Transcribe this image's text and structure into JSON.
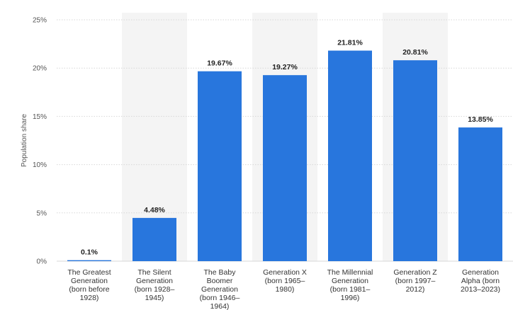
{
  "chart_data": {
    "type": "bar",
    "title": "",
    "xlabel": "",
    "ylabel": "Population share",
    "ylim": [
      0,
      25
    ],
    "yticks": [
      0,
      5,
      10,
      15,
      20,
      25
    ],
    "ytick_labels": [
      "0%",
      "5%",
      "10%",
      "15%",
      "20%",
      "25%"
    ],
    "grid": true,
    "categories": [
      [
        "The Greatest",
        "Generation",
        "(born before",
        "1928)"
      ],
      [
        "The Silent",
        "Generation",
        "(born 1928–",
        "1945)"
      ],
      [
        "The Baby",
        "Boomer",
        "Generation",
        "(born 1946–",
        "1964)"
      ],
      [
        "Generation X",
        "(born 1965–",
        "1980)"
      ],
      [
        "The Millennial",
        "Generation",
        "(born 1981–",
        "1996)"
      ],
      [
        "Generation Z",
        "(born 1997–",
        "2012)"
      ],
      [
        "Generation",
        "Alpha (born",
        "2013–2023)"
      ]
    ],
    "values": [
      0.1,
      4.48,
      19.67,
      19.27,
      21.81,
      20.81,
      13.85
    ],
    "value_labels": [
      "0.1%",
      "4.48%",
      "19.67%",
      "19.27%",
      "21.81%",
      "20.81%",
      "13.85%"
    ],
    "bar_color": "#2876dd",
    "band_color": "#f4f4f4",
    "grid_color": "#d7d7d7"
  }
}
